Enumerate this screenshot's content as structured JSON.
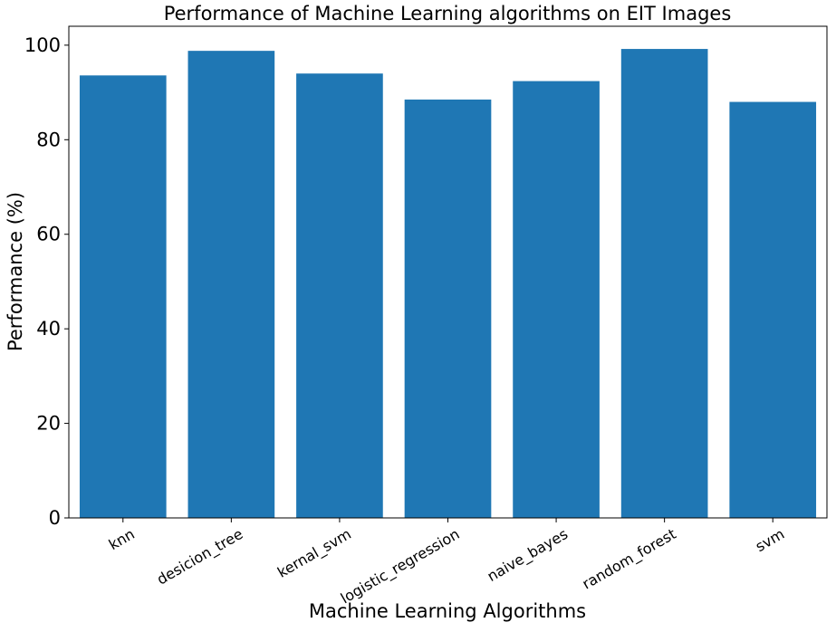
{
  "chart_data": {
    "type": "bar",
    "title": "Performance of Machine Learning algorithms on EIT Images",
    "xlabel": "Machine Learning Algorithms",
    "ylabel": "Performance (%)",
    "categories": [
      "knn",
      "desicion_tree",
      "kernal_svm",
      "logistic_regression",
      "naive_bayes",
      "random_forest",
      "svm"
    ],
    "values": [
      93.6,
      98.8,
      94.0,
      88.5,
      92.4,
      99.2,
      88.0
    ],
    "ylim": [
      0,
      104
    ],
    "yticks": [
      0,
      20,
      40,
      60,
      80,
      100
    ],
    "bar_color": "#1f77b4",
    "grid": false,
    "legend": "none"
  }
}
